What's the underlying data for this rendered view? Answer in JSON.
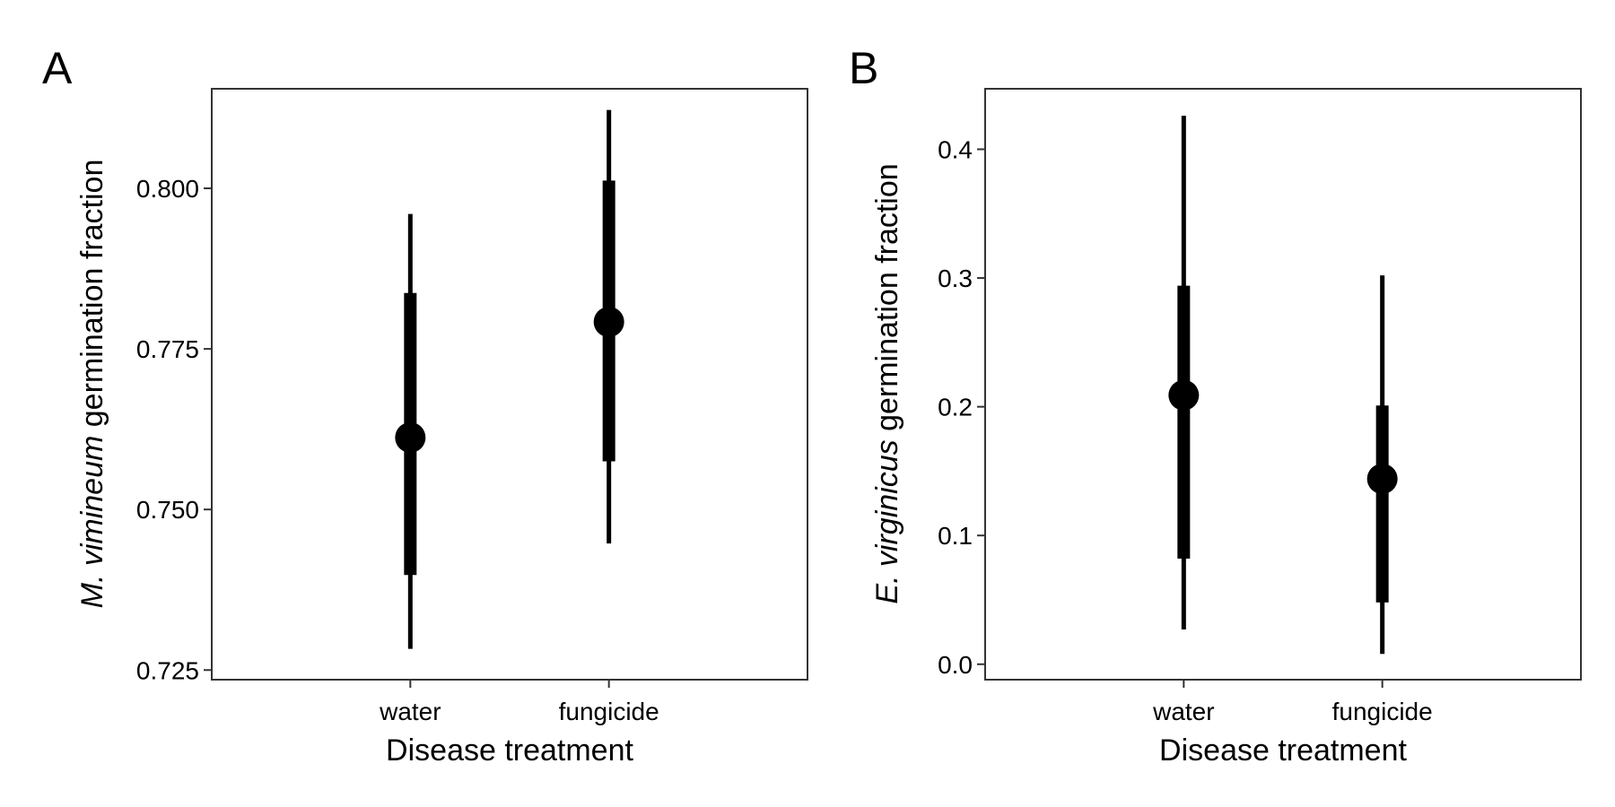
{
  "colors": {
    "background": "#ffffff",
    "ink": "#000000",
    "frame": "#333333"
  },
  "chart_data": [
    {
      "type": "pointrange",
      "panel_label": "A",
      "categories": [
        "water",
        "fungicide"
      ],
      "xlabel": "Disease treatment",
      "ylabel_italic": "M. vimineum",
      "ylabel_rest": " germination fraction",
      "ylim": [
        0.7235,
        0.8155
      ],
      "yticks": [
        0.725,
        0.75,
        0.775,
        0.8
      ],
      "ytick_labels": [
        "0.725",
        "0.750",
        "0.775",
        "0.800"
      ],
      "grid": false,
      "points": [
        {
          "category": "water",
          "estimate": 0.7612,
          "inner": [
            0.7398,
            0.7837
          ],
          "outer": [
            0.7283,
            0.796
          ]
        },
        {
          "category": "fungicide",
          "estimate": 0.7792,
          "inner": [
            0.7575,
            0.8012
          ],
          "outer": [
            0.7447,
            0.8122
          ]
        }
      ]
    },
    {
      "type": "pointrange",
      "panel_label": "B",
      "categories": [
        "water",
        "fungicide"
      ],
      "xlabel": "Disease treatment",
      "ylabel_italic": "E. virginicus",
      "ylabel_rest": " germination fraction",
      "ylim": [
        -0.012,
        0.447
      ],
      "yticks": [
        0.0,
        0.1,
        0.2,
        0.3,
        0.4
      ],
      "ytick_labels": [
        "0.0",
        "0.1",
        "0.2",
        "0.3",
        "0.4"
      ],
      "grid": false,
      "points": [
        {
          "category": "water",
          "estimate": 0.209,
          "inner": [
            0.082,
            0.294
          ],
          "outer": [
            0.027,
            0.426
          ]
        },
        {
          "category": "fungicide",
          "estimate": 0.144,
          "inner": [
            0.048,
            0.201
          ],
          "outer": [
            0.008,
            0.302
          ]
        }
      ]
    }
  ]
}
